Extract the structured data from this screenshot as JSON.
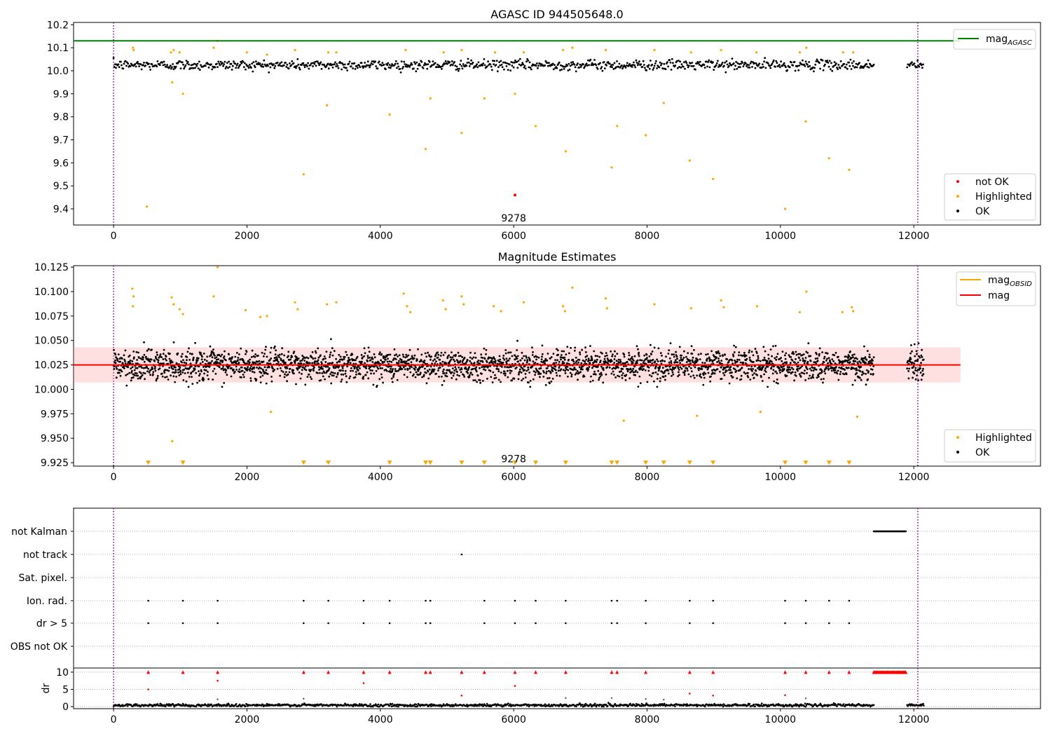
{
  "chart_data": [
    {
      "type": "scatter",
      "title": "AGASC ID 944505648.0",
      "xlim": [
        -600,
        13900
      ],
      "ylim": [
        9.33,
        10.21
      ],
      "xticks": [
        0,
        2000,
        4000,
        6000,
        8000,
        10000,
        12000
      ],
      "yticks": [
        9.4,
        9.5,
        9.6,
        9.7,
        9.8,
        9.9,
        10.0,
        10.1,
        10.2
      ],
      "ytick_labels": [
        "9.4",
        "9.5",
        "9.6",
        "9.7",
        "9.8",
        "9.9",
        "10.0",
        "10.1",
        "10.2"
      ],
      "vlines": [
        0,
        12060
      ],
      "hline": {
        "name": "mag_AGASC",
        "label": "mag",
        "label_sub": "AGASC",
        "y": 10.13,
        "x_range": [
          -600,
          12700
        ],
        "color": "#008000"
      },
      "annotation": {
        "text": "9278",
        "x": 6000,
        "y": 9.36
      },
      "legend_top": {
        "position": "top-right"
      },
      "legend_bottom": {
        "position": "bottom-right",
        "entries": [
          {
            "label": "not OK",
            "color": "#ff0000"
          },
          {
            "label": "Highlighted",
            "color": "#ffa500"
          },
          {
            "label": "OK",
            "color": "#000000"
          }
        ]
      },
      "series": [
        {
          "name": "OK",
          "color": "#000000",
          "band": {
            "segments": [
              [
                0,
                11400
              ],
              [
                11900,
                12150
              ]
            ],
            "center": 10.025,
            "spread": 0.02,
            "step": 12
          }
        },
        {
          "name": "Highlighted",
          "color": "#ffa500",
          "points": [
            [
              290,
              10.1
            ],
            [
              300,
              10.09
            ],
            [
              860,
              10.08
            ],
            [
              900,
              10.09
            ],
            [
              990,
              10.08
            ],
            [
              1500,
              10.1
            ],
            [
              1560,
              10.13
            ],
            [
              2000,
              10.08
            ],
            [
              2300,
              10.07
            ],
            [
              2720,
              10.09
            ],
            [
              3220,
              10.08
            ],
            [
              3340,
              10.08
            ],
            [
              4380,
              10.09
            ],
            [
              4950,
              10.08
            ],
            [
              5220,
              10.09
            ],
            [
              5720,
              10.08
            ],
            [
              6150,
              10.08
            ],
            [
              6740,
              10.09
            ],
            [
              6880,
              10.1
            ],
            [
              7380,
              10.09
            ],
            [
              8110,
              10.09
            ],
            [
              8660,
              10.08
            ],
            [
              9110,
              10.09
            ],
            [
              9640,
              10.08
            ],
            [
              10290,
              10.08
            ],
            [
              10390,
              10.1
            ],
            [
              10940,
              10.08
            ],
            [
              11090,
              10.08
            ],
            [
              500,
              9.41
            ],
            [
              880,
              9.95
            ],
            [
              1040,
              9.9
            ],
            [
              2850,
              9.55
            ],
            [
              3200,
              9.85
            ],
            [
              4140,
              9.81
            ],
            [
              4680,
              9.66
            ],
            [
              4750,
              9.88
            ],
            [
              5220,
              9.73
            ],
            [
              5560,
              9.88
            ],
            [
              6020,
              9.9
            ],
            [
              6330,
              9.76
            ],
            [
              6780,
              9.65
            ],
            [
              7470,
              9.58
            ],
            [
              7550,
              9.76
            ],
            [
              7980,
              9.72
            ],
            [
              8250,
              9.86
            ],
            [
              8640,
              9.61
            ],
            [
              8990,
              9.53
            ],
            [
              10070,
              9.4
            ],
            [
              10380,
              9.78
            ],
            [
              10730,
              9.62
            ],
            [
              11030,
              9.57
            ]
          ]
        },
        {
          "name": "not OK",
          "color": "#ff0000",
          "points": [
            [
              6020,
              9.46
            ]
          ]
        }
      ]
    },
    {
      "type": "scatter",
      "title": "Magnitude Estimates",
      "xlim": [
        -600,
        13900
      ],
      "ylim": [
        9.9215,
        10.1265
      ],
      "xticks": [
        0,
        2000,
        4000,
        6000,
        8000,
        10000,
        12000
      ],
      "yticks": [
        9.925,
        9.95,
        9.975,
        10.0,
        10.025,
        10.05,
        10.075,
        10.1,
        10.125
      ],
      "ytick_labels": [
        "9.925",
        "9.950",
        "9.975",
        "10.000",
        "10.025",
        "10.050",
        "10.075",
        "10.100",
        "10.125"
      ],
      "vlines": [
        0,
        12060
      ],
      "hline": {
        "name": "mag",
        "y": 10.025,
        "x_range": [
          -600,
          12700
        ],
        "color": "#ff0000"
      },
      "shaded_band": {
        "y_range": [
          10.007,
          10.043
        ],
        "x_range": [
          -600,
          12700
        ],
        "color": "#ff9999"
      },
      "obsid_mag": {
        "name": "mag_OBSID",
        "label": "mag",
        "label_sub": "OBSID",
        "color": "#ffa500"
      },
      "annotation": {
        "text": "9278",
        "x": 6000,
        "y": 9.929
      },
      "legend_top": {
        "position": "top-right"
      },
      "legend_bottom": {
        "position": "bottom-right",
        "entries": [
          {
            "label": "Highlighted",
            "color": "#ffa500"
          },
          {
            "label": "OK",
            "color": "#000000"
          }
        ]
      },
      "series": [
        {
          "name": "OK",
          "color": "#000000",
          "band": {
            "segments": [
              [
                0,
                11400
              ],
              [
                11900,
                12150
              ]
            ],
            "center": 10.025,
            "spread": 0.014,
            "step": 4
          }
        },
        {
          "name": "Highlighted",
          "color": "#ffa500",
          "points": [
            [
              280,
              10.103
            ],
            [
              290,
              10.085
            ],
            [
              300,
              10.095
            ],
            [
              870,
              10.094
            ],
            [
              900,
              10.087
            ],
            [
              990,
              10.082
            ],
            [
              1040,
              10.077
            ],
            [
              1500,
              10.095
            ],
            [
              1560,
              10.125
            ],
            [
              1980,
              10.081
            ],
            [
              2200,
              10.074
            ],
            [
              2300,
              10.075
            ],
            [
              2720,
              10.089
            ],
            [
              2760,
              10.082
            ],
            [
              3200,
              10.087
            ],
            [
              3340,
              10.089
            ],
            [
              4350,
              10.098
            ],
            [
              4400,
              10.085
            ],
            [
              4450,
              10.079
            ],
            [
              4940,
              10.091
            ],
            [
              4980,
              10.082
            ],
            [
              5220,
              10.095
            ],
            [
              5250,
              10.087
            ],
            [
              5700,
              10.085
            ],
            [
              5810,
              10.08
            ],
            [
              6150,
              10.089
            ],
            [
              6740,
              10.085
            ],
            [
              6770,
              10.08
            ],
            [
              6880,
              10.104
            ],
            [
              7380,
              10.093
            ],
            [
              7400,
              10.083
            ],
            [
              8110,
              10.087
            ],
            [
              8660,
              10.083
            ],
            [
              9110,
              10.091
            ],
            [
              9150,
              10.084
            ],
            [
              9650,
              10.085
            ],
            [
              10290,
              10.079
            ],
            [
              10390,
              10.1
            ],
            [
              10930,
              10.079
            ],
            [
              11070,
              10.084
            ],
            [
              11090,
              10.08
            ],
            [
              880,
              9.947
            ],
            [
              1040,
              9.925
            ],
            [
              2360,
              9.977
            ],
            [
              7650,
              9.968
            ],
            [
              8750,
              9.973
            ],
            [
              9700,
              9.977
            ],
            [
              11150,
              9.972
            ]
          ]
        },
        {
          "name": "below-range markers",
          "color": "#ffa500",
          "marker": "triangle-down",
          "y": 9.925,
          "x": [
            520,
            1040,
            2850,
            3220,
            4140,
            4680,
            4750,
            5220,
            5560,
            6020,
            6330,
            6780,
            7470,
            7550,
            7980,
            8250,
            8640,
            8990,
            10070,
            10380,
            10730,
            11030
          ]
        }
      ]
    },
    {
      "type": "scatter",
      "title": "",
      "xlim": [
        -600,
        13900
      ],
      "xticks": [
        0,
        2000,
        4000,
        6000,
        8000,
        10000,
        12000
      ],
      "vlines": [
        0,
        12060
      ],
      "flags": [
        "not Kalman",
        "not track",
        "Sat. pixel.",
        "Ion. rad.",
        "dr > 5",
        "OBS not OK"
      ],
      "flag_points": {
        "not Kalman": {
          "x_range": [
            11400,
            11880
          ],
          "step": 8
        },
        "not track": {
          "x": [
            5220
          ]
        },
        "Sat. pixel.": {
          "x": []
        },
        "Ion. rad.": {
          "x": [
            520,
            1040,
            1560,
            2850,
            3220,
            3750,
            4140,
            4680,
            4750,
            5560,
            6020,
            6330,
            6780,
            7470,
            7550,
            7980,
            8640,
            8990,
            10070,
            10380,
            10730,
            11030
          ]
        },
        "dr > 5": {
          "x": [
            520,
            1040,
            1560,
            2850,
            3220,
            3750,
            4140,
            4680,
            4750,
            5560,
            6020,
            6330,
            6780,
            7470,
            7550,
            7980,
            8640,
            8990,
            10070,
            10380,
            10730,
            11030
          ]
        },
        "OBS not OK": {
          "x": []
        }
      },
      "dr_panel": {
        "ylabel": "dr",
        "ylim": [
          -0.6,
          11.2
        ],
        "yticks": [
          0,
          5,
          10
        ],
        "ytick_labels": [
          "0",
          "5",
          "10"
        ],
        "ok_band": {
          "segments": [
            [
              0,
              11400
            ],
            [
              11900,
              12150
            ]
          ],
          "center": 0.4,
          "spread": 0.4,
          "step": 10
        },
        "clipped": {
          "y": 10,
          "color": "#ff0000",
          "marker": "triangle-up",
          "x": [
            520,
            1040,
            1560,
            2850,
            3220,
            3750,
            4140,
            4680,
            4750,
            5220,
            5560,
            6020,
            6330,
            6780,
            7470,
            7550,
            7980,
            8640,
            8990,
            10070,
            10380,
            10730,
            11030
          ],
          "x_range": [
            11400,
            11880
          ],
          "range_step": 12
        },
        "red_points": [
          [
            520,
            5
          ],
          [
            1560,
            7.5
          ],
          [
            3750,
            6.8
          ],
          [
            5220,
            3.2
          ],
          [
            6020,
            6
          ],
          [
            8640,
            3.8
          ],
          [
            8990,
            3.2
          ],
          [
            10070,
            3.3
          ]
        ],
        "gray_points": [
          [
            1560,
            2.1
          ],
          [
            2850,
            2.3
          ],
          [
            6780,
            2.5
          ],
          [
            7470,
            2.5
          ],
          [
            7980,
            2.2
          ],
          [
            8250,
            2.0
          ],
          [
            10380,
            2.4
          ]
        ]
      }
    }
  ]
}
